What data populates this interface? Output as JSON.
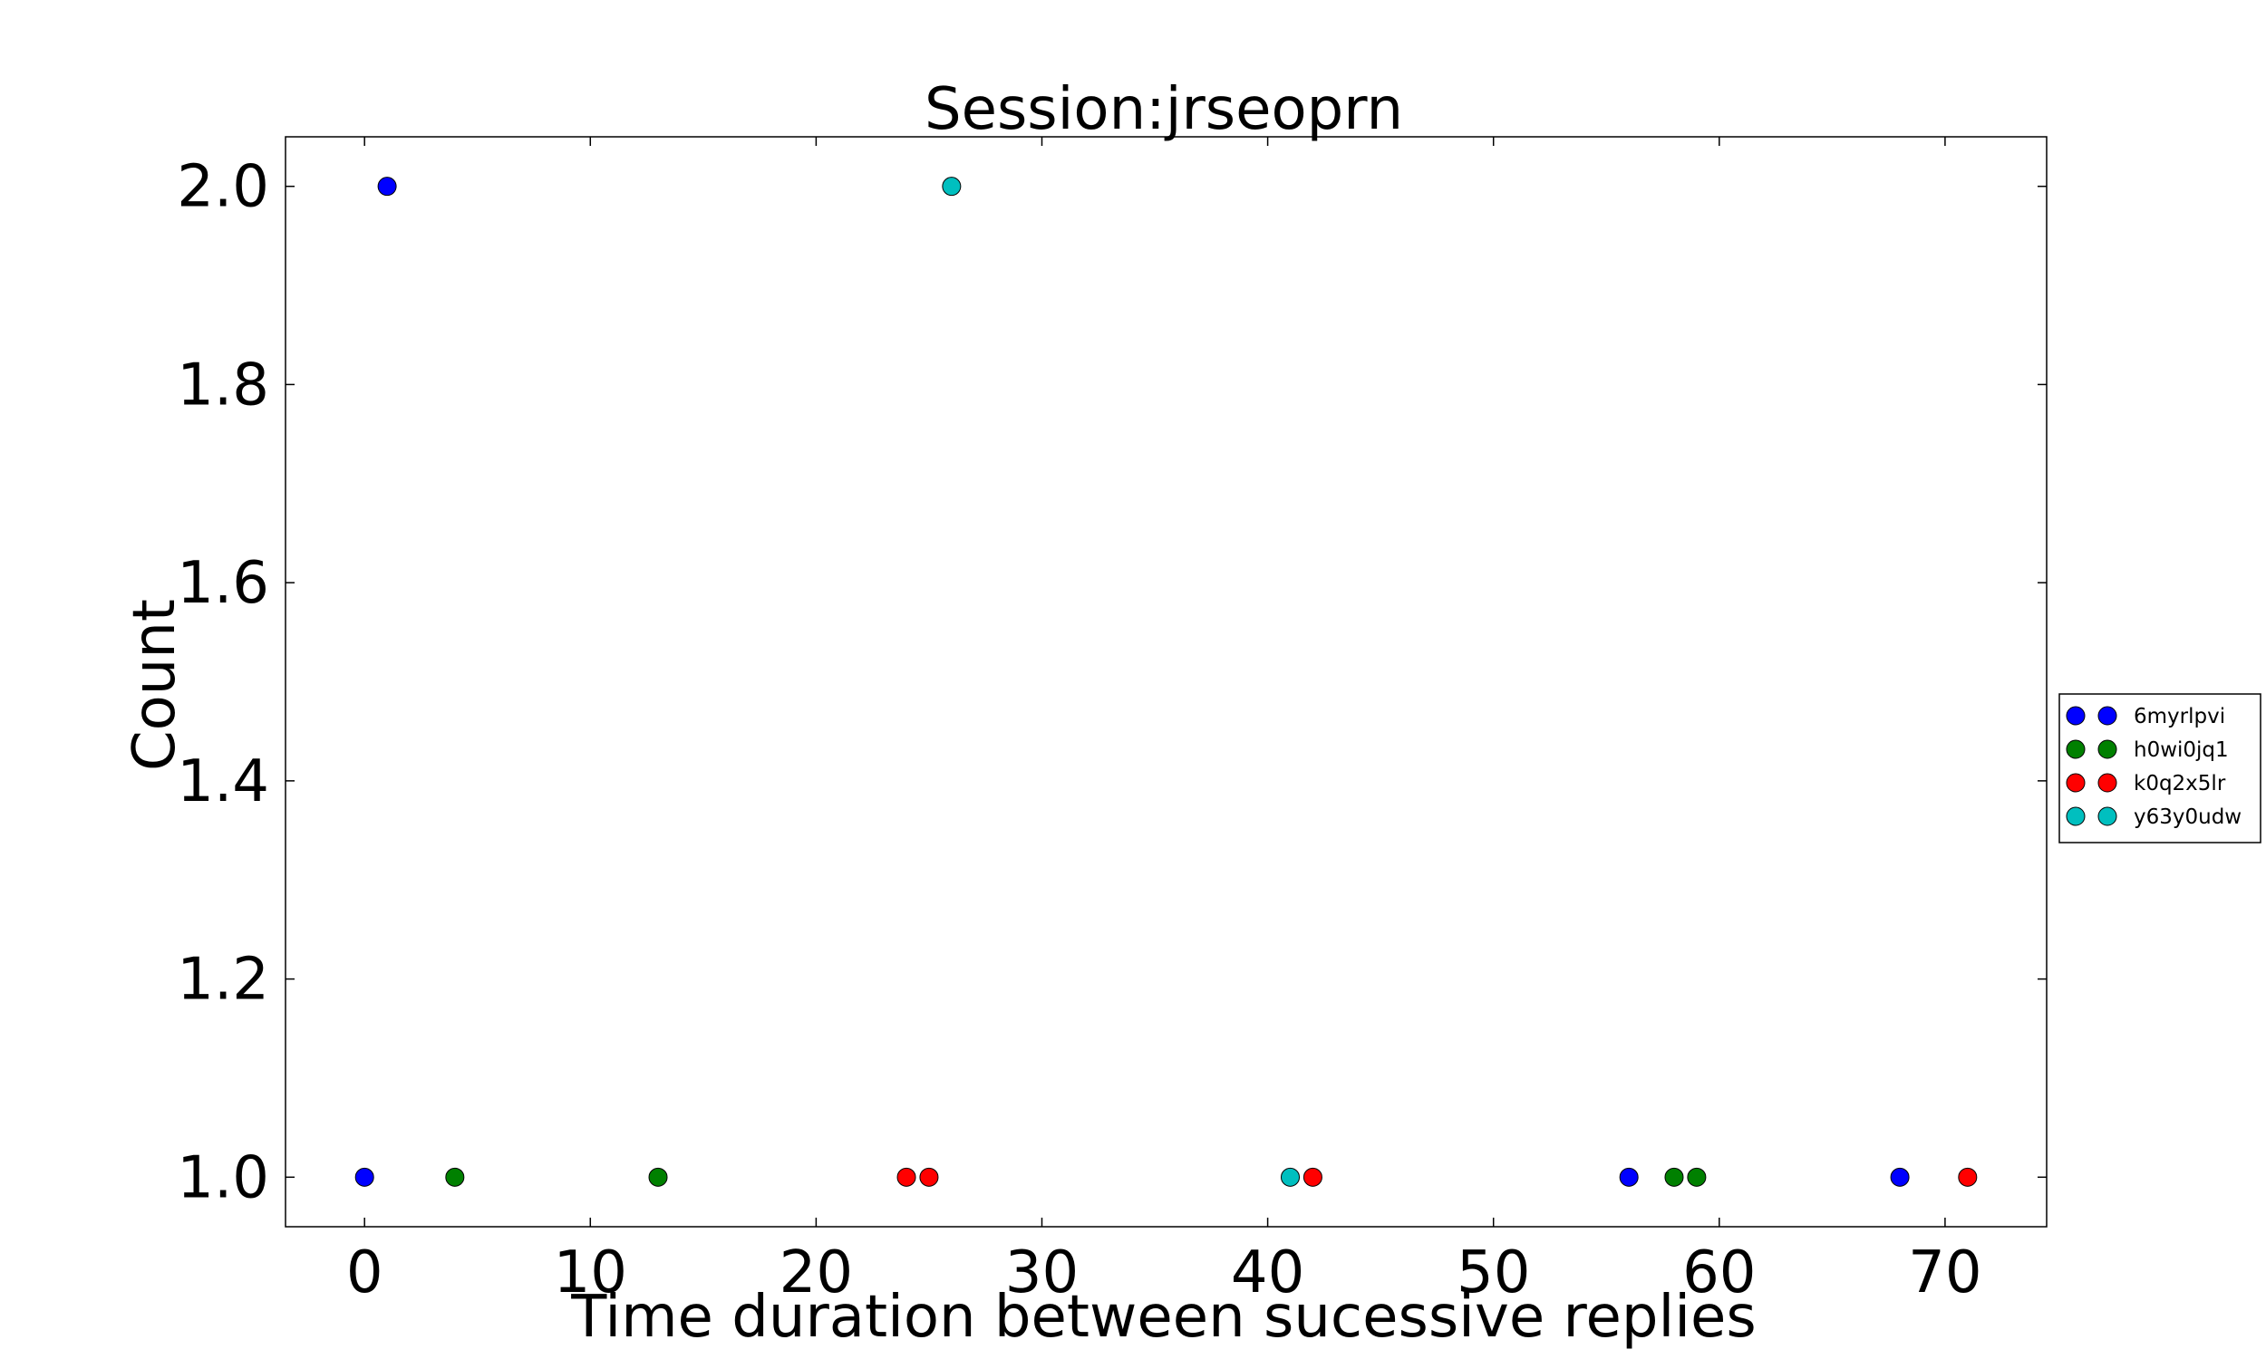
{
  "chart_data": {
    "type": "scatter",
    "title": "Session:jrseoprn",
    "xlabel": "Time duration between sucessive replies",
    "ylabel": "Count",
    "xlim": [
      -3.5,
      74.5
    ],
    "ylim": [
      0.95,
      2.05
    ],
    "xticks": [
      0,
      10,
      20,
      30,
      40,
      50,
      60,
      70
    ],
    "xtick_labels": [
      "0",
      "10",
      "20",
      "30",
      "40",
      "50",
      "60",
      "70"
    ],
    "yticks": [
      1.0,
      1.2,
      1.4,
      1.6,
      1.8,
      2.0
    ],
    "ytick_labels": [
      "1.0",
      "1.2",
      "1.4",
      "1.6",
      "1.8",
      "2.0"
    ],
    "grid": false,
    "legend_position": "right, outside plot",
    "series": [
      {
        "name": "6myrlpvi",
        "color": "#0000ff",
        "x": [
          0,
          1,
          56,
          68
        ],
        "y": [
          1,
          2,
          1,
          1
        ]
      },
      {
        "name": "h0wi0jq1",
        "color": "#008000",
        "x": [
          4,
          13,
          58,
          59
        ],
        "y": [
          1,
          1,
          1,
          1
        ]
      },
      {
        "name": "k0q2x5lr",
        "color": "#ff0000",
        "x": [
          24,
          25,
          42,
          71
        ],
        "y": [
          1,
          1,
          1,
          1
        ]
      },
      {
        "name": "y63y0udw",
        "color": "#00bfbf",
        "x": [
          26,
          41
        ],
        "y": [
          2,
          1
        ]
      }
    ]
  }
}
